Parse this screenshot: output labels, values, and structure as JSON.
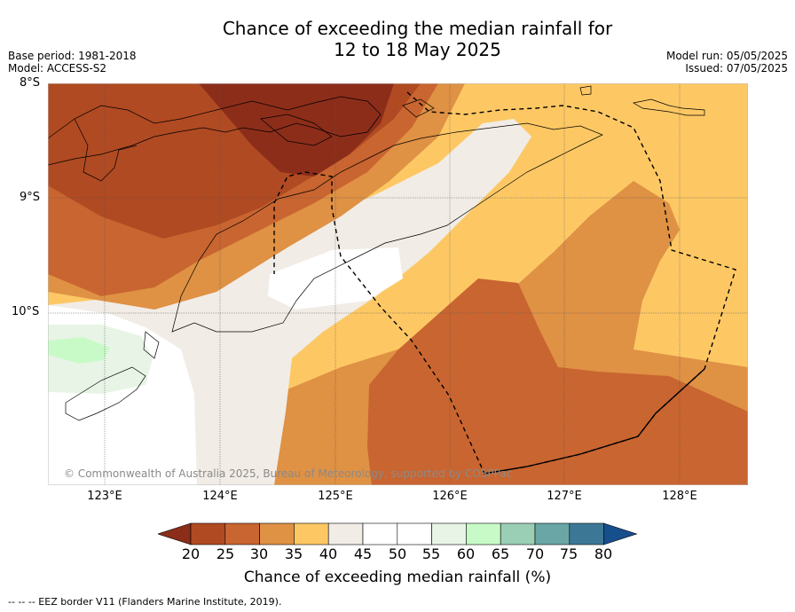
{
  "title": {
    "line1": "Chance of exceeding the median rainfall for",
    "line2": "12 to 18 May 2025"
  },
  "meta": {
    "base_period": "Base period: 1981-2018",
    "model": "Model: ACCESS-S2",
    "model_run": "Model run: 05/05/2025",
    "issued": "Issued: 07/05/2025"
  },
  "map": {
    "lat_labels": [
      "8°S",
      "9°S",
      "10°S"
    ],
    "lon_labels": [
      "123°E",
      "124°E",
      "125°E",
      "126°E",
      "127°E",
      "128°E"
    ],
    "copyright": "© Commonwealth of Australia 2025, Bureau of Meteorology, supported by COSPPac"
  },
  "colorbar": {
    "title": "Chance of exceeding median rainfall (%)",
    "ticks": [
      "20",
      "25",
      "30",
      "35",
      "40",
      "45",
      "50",
      "55",
      "60",
      "65",
      "70",
      "75",
      "80"
    ],
    "colors": [
      "#8c2d1a",
      "#b04a22",
      "#c96530",
      "#df9144",
      "#fdc864",
      "#f1ece6",
      "#ffffff",
      "#ffffff",
      "#e8f4e6",
      "#c8fac8",
      "#9acfb6",
      "#6aa6a6",
      "#3c7896",
      "#174f8c"
    ]
  },
  "footnote": "-- -- -- EEZ border V11 (Flanders Marine Institute, 2019)."
}
